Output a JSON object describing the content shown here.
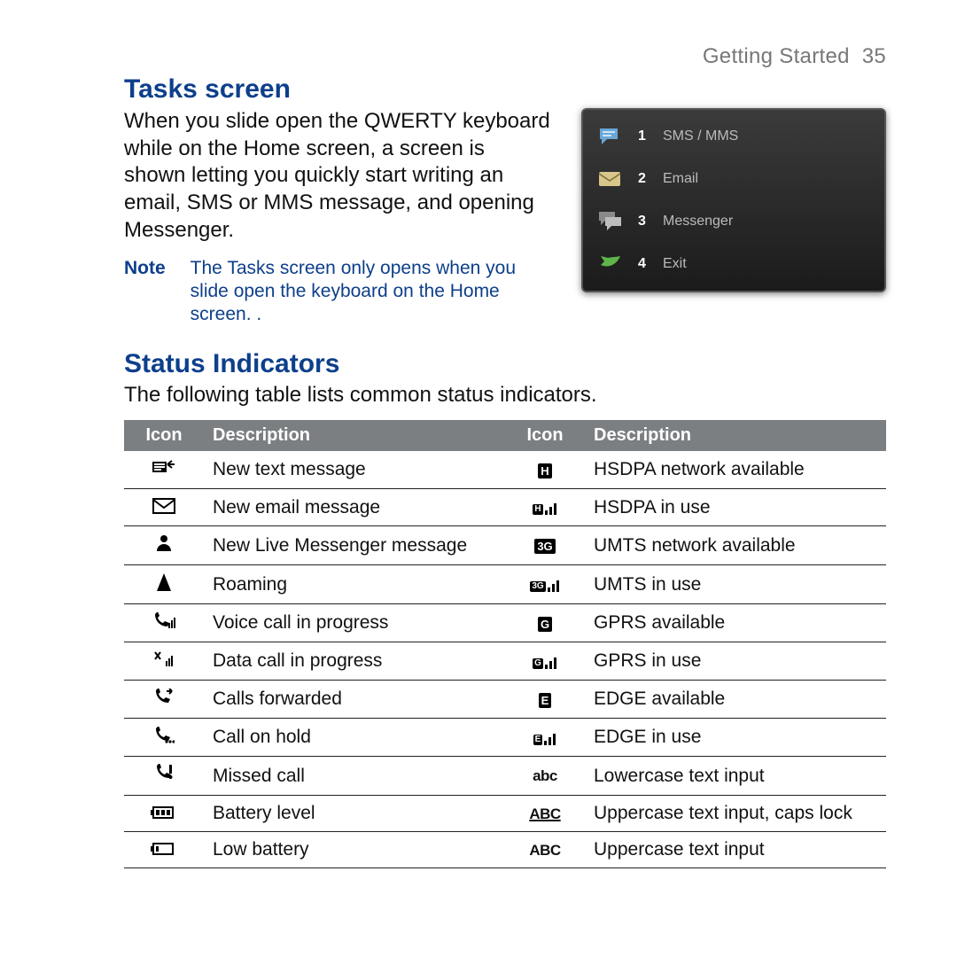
{
  "header": {
    "section": "Getting Started",
    "page": "35"
  },
  "tasks": {
    "heading": "Tasks screen",
    "body": "When you slide open the QWERTY keyboard while on the Home screen, a screen is shown letting you quickly start writing an email, SMS or MMS message, and opening Messenger.",
    "note_label": "Note",
    "note_text": "The Tasks screen only opens when you slide open the keyboard on the Home screen. .",
    "phone_items": [
      {
        "num": "1",
        "label": "SMS / MMS",
        "icon": "sms"
      },
      {
        "num": "2",
        "label": "Email",
        "icon": "email"
      },
      {
        "num": "3",
        "label": "Messenger",
        "icon": "messenger"
      },
      {
        "num": "4",
        "label": "Exit",
        "icon": "exit"
      }
    ]
  },
  "status": {
    "heading": "Status Indicators",
    "intro": "The following table lists common status indicators.",
    "columns": [
      "Icon",
      "Description",
      "Icon",
      "Description"
    ],
    "rows": [
      {
        "l_icon": "new-text",
        "l_desc": "New text message",
        "r_icon": "H",
        "r_desc": "HSDPA network available",
        "r_type": "boxed"
      },
      {
        "l_icon": "new-email",
        "l_desc": "New email message",
        "r_icon": "H",
        "r_desc": "HSDPA in use",
        "r_type": "boxed-signal"
      },
      {
        "l_icon": "messenger-msg",
        "l_desc": "New Live Messenger message",
        "r_icon": "3G",
        "r_desc": "UMTS network available",
        "r_type": "boxed"
      },
      {
        "l_icon": "roaming",
        "l_desc": "Roaming",
        "r_icon": "3G",
        "r_desc": "UMTS in use",
        "r_type": "boxed-signal"
      },
      {
        "l_icon": "voice-call",
        "l_desc": "Voice call in progress",
        "r_icon": "G",
        "r_desc": "GPRS available",
        "r_type": "boxed"
      },
      {
        "l_icon": "data-call",
        "l_desc": "Data call in progress",
        "r_icon": "G",
        "r_desc": "GPRS in use",
        "r_type": "boxed-signal"
      },
      {
        "l_icon": "calls-fwd",
        "l_desc": "Calls forwarded",
        "r_icon": "E",
        "r_desc": "EDGE available",
        "r_type": "boxed"
      },
      {
        "l_icon": "call-hold",
        "l_desc": "Call on hold",
        "r_icon": "E",
        "r_desc": "EDGE in use",
        "r_type": "boxed-signal"
      },
      {
        "l_icon": "missed-call",
        "l_desc": "Missed call",
        "r_icon": "abc",
        "r_desc": "Lowercase text input",
        "r_type": "abc-lower"
      },
      {
        "l_icon": "battery",
        "l_desc": "Battery level",
        "r_icon": "ABC",
        "r_desc": "Uppercase text input, caps lock",
        "r_type": "abc-upper-under"
      },
      {
        "l_icon": "low-battery",
        "l_desc": "Low battery",
        "r_icon": "ABC",
        "r_desc": "Uppercase text input",
        "r_type": "abc-upper"
      }
    ]
  }
}
